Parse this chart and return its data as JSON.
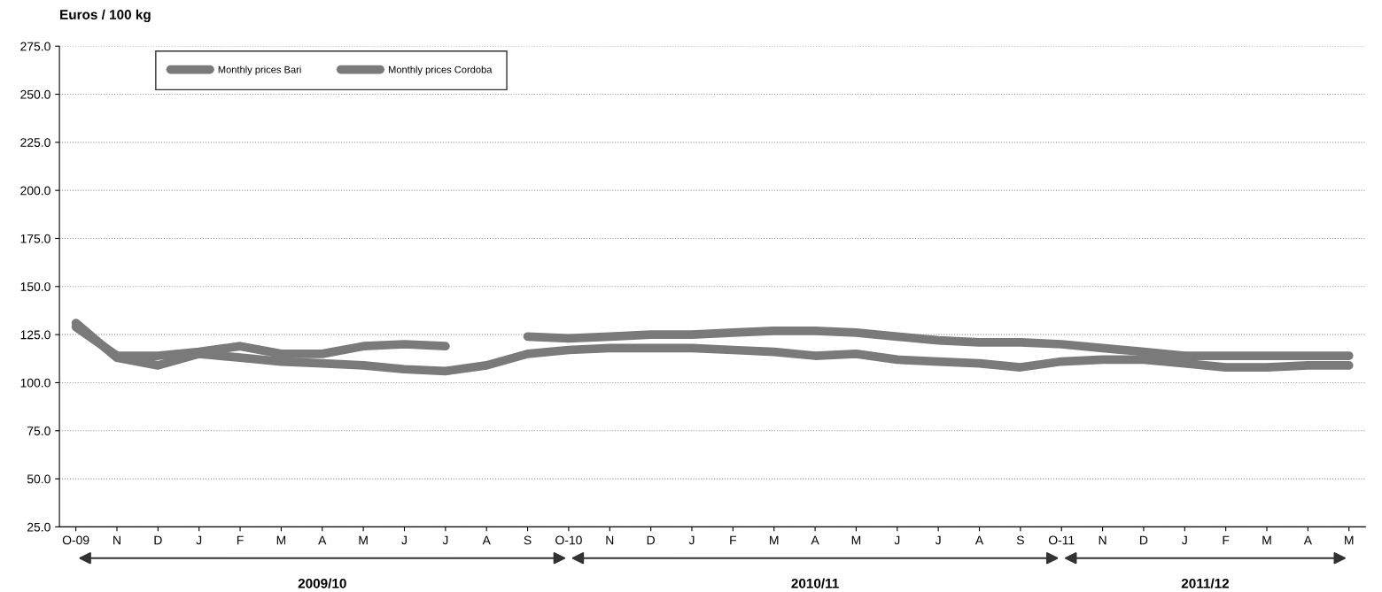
{
  "chart_data": {
    "type": "line",
    "ylabel": "Euros / 100 kg",
    "categories": [
      "O-09",
      "N",
      "D",
      "J",
      "F",
      "M",
      "A",
      "M",
      "J",
      "J",
      "A",
      "S",
      "O-10",
      "N",
      "D",
      "J",
      "F",
      "M",
      "A",
      "M",
      "J",
      "J",
      "A",
      "S",
      "O-11",
      "N",
      "D",
      "J",
      "F",
      "M",
      "A",
      "M"
    ],
    "series": [
      {
        "name": "Monthly prices Bari",
        "color": "#7a7a7a",
        "values": [
          129,
          114,
          114,
          116,
          119,
          115,
          115,
          119,
          120,
          119,
          null,
          124,
          123,
          124,
          125,
          125,
          126,
          127,
          127,
          126,
          124,
          122,
          121,
          121,
          120,
          118,
          116,
          114,
          114,
          114,
          114,
          114
        ]
      },
      {
        "name": "Monthly prices Cordoba",
        "color": "#7a7a7a",
        "values": [
          131,
          113,
          109,
          115,
          113,
          111,
          110,
          109,
          107,
          106,
          109,
          115,
          117,
          118,
          118,
          118,
          117,
          116,
          114,
          115,
          112,
          111,
          110,
          108,
          111,
          112,
          112,
          110,
          108,
          108,
          109,
          109
        ]
      }
    ],
    "ylim": [
      25,
      275
    ],
    "yticks": [
      {
        "value": 25,
        "label": "25.0"
      },
      {
        "value": 50,
        "label": "50.0"
      },
      {
        "value": 75,
        "label": "75.0"
      },
      {
        "value": 100,
        "label": "100.0"
      },
      {
        "value": 125,
        "label": "125.0"
      },
      {
        "value": 150,
        "label": "150.0"
      },
      {
        "value": 175,
        "label": "175.0"
      },
      {
        "value": 200,
        "label": "200.0"
      },
      {
        "value": 225,
        "label": "225.0"
      },
      {
        "value": 250,
        "label": "250.0"
      },
      {
        "value": 275,
        "label": "275.0"
      }
    ],
    "grid": "y",
    "legend": "top left",
    "marker": "none",
    "line_style": "solid",
    "annotations": [
      "2009/10",
      "2010/11",
      "2011/12"
    ]
  }
}
